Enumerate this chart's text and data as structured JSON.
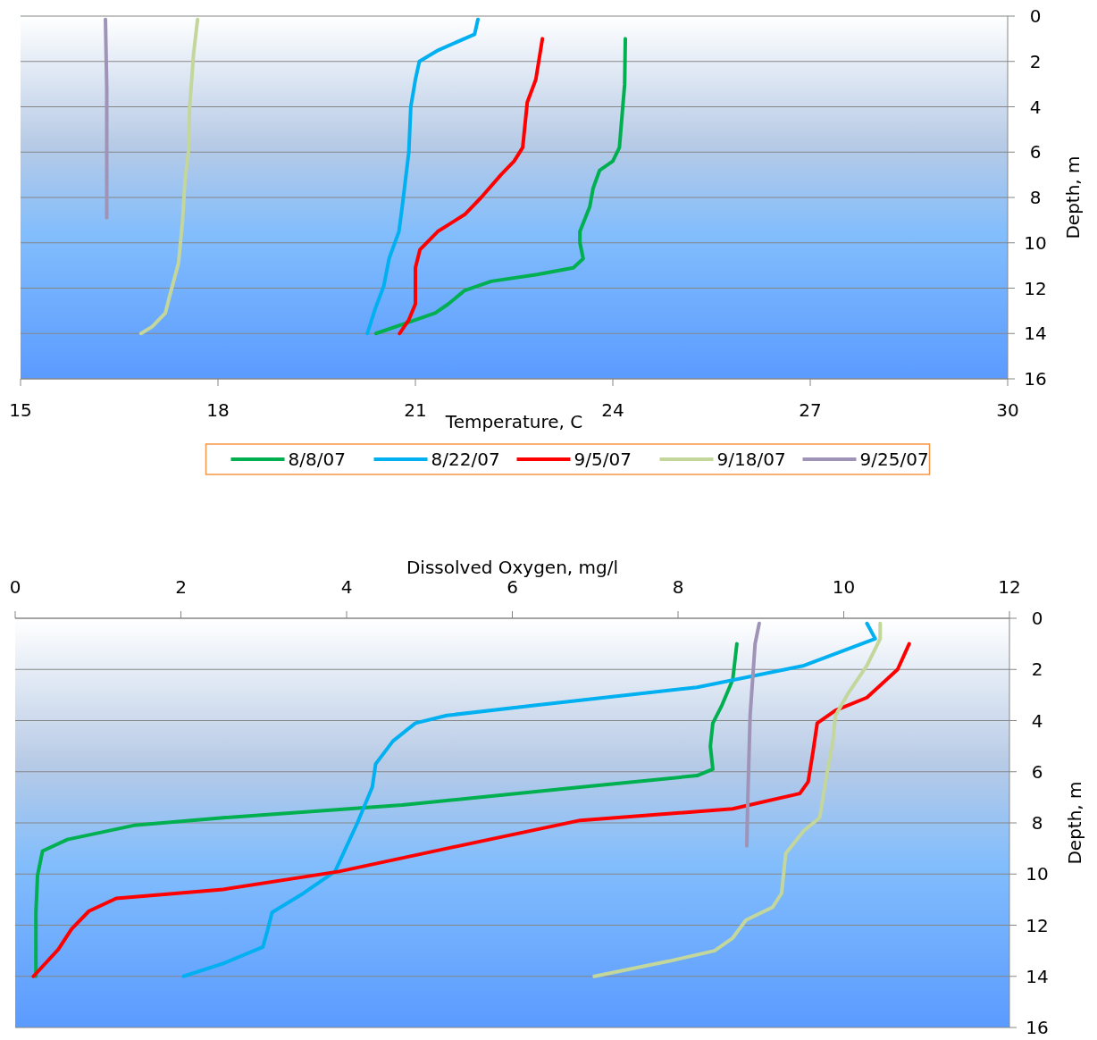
{
  "chart_data": [
    {
      "type": "line",
      "xlabel": "Temperature, C",
      "ylabel": "Depth, m",
      "xlim": [
        15,
        30
      ],
      "xticks": [
        15,
        18,
        21,
        24,
        27,
        30
      ],
      "ylim": [
        16,
        0
      ],
      "yticks": [
        0,
        2,
        4,
        6,
        8,
        10,
        12,
        14,
        16
      ],
      "grid": "y",
      "legend": "bottom",
      "line_style": "solid",
      "series": [
        {
          "name": "8/8/07",
          "color": "#00b050",
          "x": [
            24.19,
            24.18,
            24.1,
            24.0,
            23.8,
            23.7,
            23.65,
            23.5,
            23.5,
            23.55,
            23.4,
            22.85,
            22.15,
            21.75,
            21.5,
            21.3,
            20.9,
            20.4
          ],
          "values": [
            1,
            3,
            5.8,
            6.4,
            6.8,
            7.6,
            8.4,
            9.5,
            10,
            10.7,
            11.1,
            11.4,
            11.7,
            12.1,
            12.7,
            13.1,
            13.5,
            14
          ]
        },
        {
          "name": "8/22/07",
          "color": "#00b0f0",
          "x": [
            21.95,
            21.9,
            21.35,
            21.06,
            21.0,
            20.93,
            20.9,
            20.8,
            20.75,
            20.6,
            20.52,
            20.39,
            20.27
          ],
          "values": [
            0.15,
            0.8,
            1.5,
            2,
            2.8,
            4,
            6,
            8.4,
            9.5,
            10.7,
            11.9,
            12.9,
            14
          ]
        },
        {
          "name": "9/5/07",
          "color": "#ff0000",
          "x": [
            22.93,
            22.83,
            22.7,
            22.63,
            22.5,
            22.3,
            22.0,
            21.75,
            21.34,
            21.07,
            21.0,
            21.0,
            20.9,
            20.76
          ],
          "values": [
            1,
            2.8,
            3.8,
            5.8,
            6.4,
            7,
            8,
            8.75,
            9.5,
            10.3,
            11.1,
            12.7,
            13.4,
            14
          ]
        },
        {
          "name": "9/18/07",
          "color": "#c3d69b",
          "x": [
            17.69,
            17.63,
            17.57,
            17.55,
            17.5,
            17.46,
            17.4,
            17.27,
            17.2,
            17.0,
            16.83
          ],
          "values": [
            0.15,
            1.65,
            4,
            6,
            7.2,
            9.1,
            10.9,
            12.3,
            13.1,
            13.7,
            14
          ]
        },
        {
          "name": "9/25/07",
          "color": "#9f94b8",
          "x": [
            16.29,
            16.31,
            16.31
          ],
          "values": [
            0.15,
            3.2,
            8.9
          ]
        }
      ]
    },
    {
      "type": "line",
      "xlabel": "Dissolved Oxygen, mg/l",
      "ylabel": "Depth, m",
      "xlim": [
        0,
        12
      ],
      "xticks": [
        0,
        2,
        4,
        6,
        8,
        10,
        12
      ],
      "ylim": [
        16,
        0
      ],
      "yticks": [
        0,
        2,
        4,
        6,
        8,
        10,
        12,
        14,
        16
      ],
      "grid": "y",
      "line_style": "solid",
      "series": [
        {
          "color": "#00b050",
          "x": [
            8.71,
            8.66,
            8.53,
            8.42,
            8.39,
            8.42,
            8.23,
            6.82,
            4.67,
            2.51,
            1.43,
            0.63,
            0.33,
            0.27,
            0.25,
            0.25
          ],
          "values": [
            1,
            2.4,
            3.4,
            4.1,
            5,
            5.9,
            6.15,
            6.6,
            7.3,
            7.8,
            8.1,
            8.65,
            9.1,
            10.05,
            11.5,
            14
          ]
        },
        {
          "color": "#00b0f0",
          "x": [
            10.28,
            10.38,
            9.52,
            8.23,
            6.29,
            5.21,
            4.83,
            4.56,
            4.35,
            4.31,
            4.13,
            3.86,
            3.48,
            3.1,
            3.05,
            2.99,
            2.51,
            2.03
          ],
          "values": [
            0.2,
            0.8,
            1.85,
            2.7,
            3.4,
            3.8,
            4.1,
            4.8,
            5.7,
            6.6,
            8,
            9.9,
            10.75,
            11.5,
            12.15,
            12.85,
            13.5,
            14
          ]
        },
        {
          "color": "#ff0000",
          "x": [
            10.79,
            10.65,
            10.28,
            9.9,
            9.68,
            9.63,
            9.57,
            9.47,
            8.66,
            6.82,
            5.21,
            3.91,
            2.51,
            1.22,
            0.89,
            0.68,
            0.52,
            0.22
          ],
          "values": [
            1,
            2,
            3.1,
            3.6,
            4.1,
            5.2,
            6.4,
            6.85,
            7.45,
            7.9,
            9,
            9.9,
            10.6,
            10.95,
            11.45,
            12.15,
            12.95,
            14
          ]
        },
        {
          "color": "#c3d69b",
          "x": [
            10.44,
            10.44,
            10.28,
            10.06,
            9.9,
            9.87,
            9.79,
            9.71,
            9.52,
            9.3,
            9.25,
            9.14,
            8.82,
            8.66,
            8.44,
            7.9,
            6.99
          ],
          "values": [
            0.2,
            0.8,
            1.85,
            2.9,
            3.8,
            4.8,
            6.2,
            7.8,
            8.3,
            9.2,
            10.75,
            11.3,
            11.8,
            12.5,
            13,
            13.4,
            14
          ]
        },
        {
          "color": "#9f94b8",
          "x": [
            8.98,
            8.93,
            8.87,
            8.84,
            8.83
          ],
          "values": [
            0.2,
            1,
            3.8,
            7.3,
            8.9
          ]
        }
      ]
    }
  ]
}
